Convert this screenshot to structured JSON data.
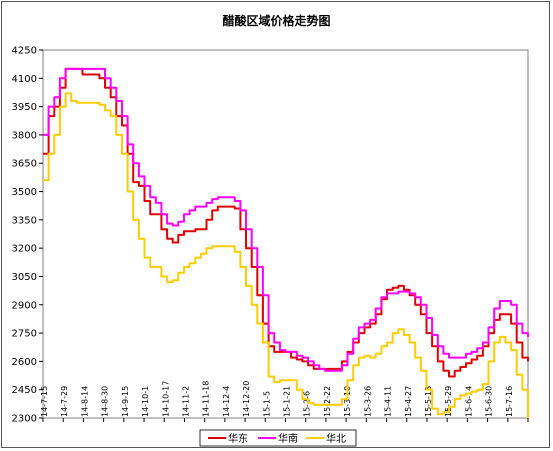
{
  "chart_data": {
    "type": "line",
    "title": "醋酸区域价格走势图",
    "xlabel": "",
    "ylabel": "",
    "ylim": [
      2300,
      4250
    ],
    "y_ticks": [
      2300,
      2450,
      2600,
      2750,
      2900,
      3050,
      3200,
      3350,
      3500,
      3650,
      3800,
      3950,
      4100,
      4250
    ],
    "x_tick_labels": [
      "14-7-15",
      "14-7-29",
      "14-8-14",
      "14-8-30",
      "14-9-15",
      "14-10-1",
      "14-10-17",
      "14-11-2",
      "14-11-18",
      "14-12-4",
      "14-12-20",
      "15-1-5",
      "15-1-21",
      "15-2-6",
      "15-2-22",
      "15-3-10",
      "15-3-26",
      "15-4-11",
      "15-4-27",
      "15-5-13",
      "15-5-29",
      "15-6-14",
      "15-6-30",
      "15-7-16"
    ],
    "grid": false,
    "legend_position": "bottom",
    "series": [
      {
        "name": "华东",
        "color": "#e00000",
        "values": [
          3700,
          3900,
          3950,
          4050,
          4150,
          4150,
          4150,
          4120,
          4120,
          4120,
          4100,
          4050,
          4000,
          3900,
          3850,
          3700,
          3550,
          3530,
          3450,
          3380,
          3380,
          3300,
          3250,
          3230,
          3270,
          3290,
          3290,
          3300,
          3300,
          3350,
          3400,
          3420,
          3420,
          3420,
          3410,
          3300,
          3200,
          3100,
          2950,
          2800,
          2680,
          2650,
          2650,
          2650,
          2620,
          2610,
          2600,
          2580,
          2560,
          2560,
          2560,
          2560,
          2560,
          2600,
          2650,
          2700,
          2750,
          2780,
          2800,
          2850,
          2930,
          2980,
          2990,
          3000,
          2980,
          2950,
          2900,
          2850,
          2750,
          2680,
          2600,
          2550,
          2520,
          2550,
          2570,
          2590,
          2610,
          2630,
          2680,
          2750,
          2820,
          2850,
          2850,
          2800,
          2700,
          2620,
          2600
        ]
      },
      {
        "name": "华南",
        "color": "#ff00ff",
        "values": [
          3800,
          3950,
          4000,
          4100,
          4150,
          4150,
          4150,
          4150,
          4150,
          4150,
          4150,
          4100,
          4050,
          3980,
          3900,
          3750,
          3650,
          3580,
          3530,
          3470,
          3440,
          3380,
          3330,
          3320,
          3340,
          3380,
          3400,
          3420,
          3420,
          3440,
          3460,
          3470,
          3470,
          3470,
          3450,
          3400,
          3300,
          3200,
          3100,
          2950,
          2750,
          2700,
          2660,
          2650,
          2650,
          2630,
          2620,
          2600,
          2580,
          2560,
          2550,
          2550,
          2550,
          2580,
          2640,
          2720,
          2780,
          2800,
          2820,
          2880,
          2940,
          2960,
          2960,
          2970,
          2970,
          2960,
          2940,
          2900,
          2830,
          2740,
          2680,
          2640,
          2620,
          2620,
          2620,
          2640,
          2650,
          2670,
          2700,
          2780,
          2880,
          2920,
          2920,
          2900,
          2800,
          2750,
          2730
        ]
      },
      {
        "name": "华北",
        "color": "#ffcc00",
        "values": [
          3560,
          3700,
          3800,
          3950,
          4020,
          3980,
          3970,
          3970,
          3970,
          3970,
          3960,
          3930,
          3900,
          3800,
          3700,
          3500,
          3350,
          3250,
          3150,
          3100,
          3100,
          3050,
          3020,
          3030,
          3070,
          3100,
          3120,
          3150,
          3170,
          3200,
          3210,
          3210,
          3210,
          3210,
          3180,
          3100,
          3000,
          2900,
          2800,
          2700,
          2520,
          2490,
          2500,
          2500,
          2500,
          2450,
          2400,
          2380,
          2370,
          2370,
          2370,
          2370,
          2370,
          2400,
          2500,
          2580,
          2620,
          2630,
          2620,
          2640,
          2680,
          2700,
          2750,
          2770,
          2740,
          2700,
          2620,
          2550,
          2450,
          2350,
          2320,
          2330,
          2360,
          2400,
          2420,
          2430,
          2440,
          2450,
          2480,
          2600,
          2700,
          2730,
          2700,
          2660,
          2530,
          2450,
          2300
        ]
      }
    ]
  }
}
